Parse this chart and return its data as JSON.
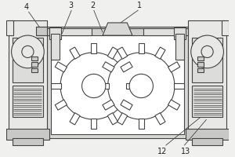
{
  "bg_color": "#f0f0ee",
  "line_color": "#444444",
  "lw": 0.8,
  "fig_w": 3.0,
  "fig_h": 2.0,
  "dpi": 100,
  "gear_color": "#ffffff",
  "main_body_color": "#ffffff",
  "pipe_color": "#e0e0de",
  "side_unit_color": "#e8e8e6",
  "hatch_color": "#ccccca"
}
